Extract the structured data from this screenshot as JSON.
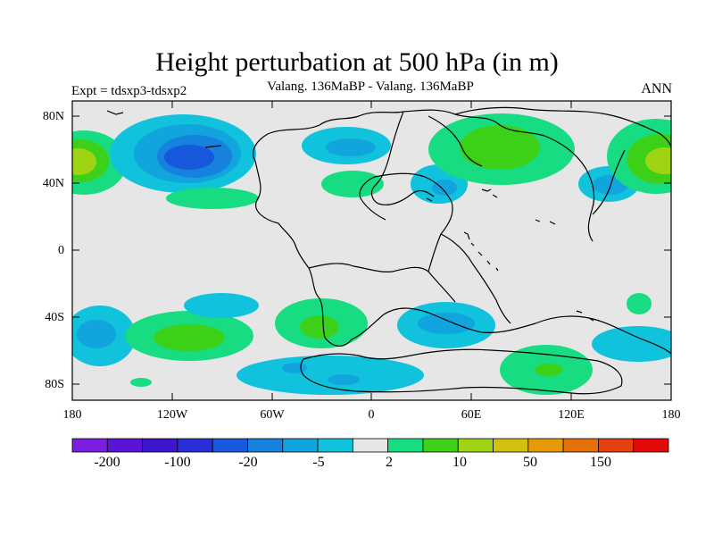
{
  "title": "Height perturbation at 500 hPa (in m)",
  "subtitle": "Valang. 136MaBP - Valang. 136MaBP",
  "left_label": "Expt = tdsxp3-tdsxp2",
  "right_label": "ANN",
  "axes": {
    "x_tick_labels": [
      "180",
      "120W",
      "60W",
      "0",
      "60E",
      "120E",
      "180"
    ],
    "y_tick_labels": [
      "80N",
      "40N",
      "0",
      "40S",
      "80S"
    ]
  },
  "colorbar": {
    "tick_labels": [
      "-200",
      "-100",
      "-20",
      "-5",
      "2",
      "10",
      "50",
      "150"
    ],
    "colors": [
      "#7a1ee0",
      "#5a14d6",
      "#3e16cc",
      "#2a2ed8",
      "#1858dc",
      "#1682de",
      "#12a4dc",
      "#10c2dc",
      "#e6e6e6",
      "#18dc82",
      "#3cd018",
      "#9ed414",
      "#d2c00c",
      "#e69a08",
      "#e67008",
      "#e44010",
      "#e40a0a"
    ]
  },
  "chart_data": {
    "type": "filled contour map",
    "field": "500 hPa height perturbation (m)",
    "lon_range": [
      -180,
      180
    ],
    "lat_range": [
      -90,
      90
    ],
    "features": [
      {
        "lat": 55,
        "lon": -175,
        "sign": "positive",
        "peak_level": "50"
      },
      {
        "lat": 58,
        "lon": -115,
        "sign": "negative",
        "peak_level": "-20"
      },
      {
        "lat": 35,
        "lon": -95,
        "sign": "positive",
        "peak_level": "2"
      },
      {
        "lat": 60,
        "lon": -20,
        "sign": "negative",
        "peak_level": "-5"
      },
      {
        "lat": 38,
        "lon": -5,
        "sign": "positive",
        "peak_level": "2"
      },
      {
        "lat": 45,
        "lon": 30,
        "sign": "negative",
        "peak_level": "-5"
      },
      {
        "lat": 63,
        "lon": 70,
        "sign": "positive",
        "peak_level": "10"
      },
      {
        "lat": 42,
        "lon": 145,
        "sign": "negative",
        "peak_level": "-5"
      },
      {
        "lat": 60,
        "lon": 165,
        "sign": "positive",
        "peak_level": "50"
      },
      {
        "lat": -50,
        "lon": -120,
        "sign": "positive",
        "peak_level": "10"
      },
      {
        "lat": -48,
        "lon": -25,
        "sign": "positive",
        "peak_level": "10"
      },
      {
        "lat": -45,
        "lon": 50,
        "sign": "negative",
        "peak_level": "-5"
      },
      {
        "lat": -75,
        "lon": 95,
        "sign": "positive",
        "peak_level": "10"
      },
      {
        "lat": -75,
        "lon": -40,
        "sign": "negative",
        "peak_level": "-5"
      },
      {
        "lat": -55,
        "lon": 155,
        "sign": "negative",
        "peak_level": "-5"
      }
    ]
  }
}
